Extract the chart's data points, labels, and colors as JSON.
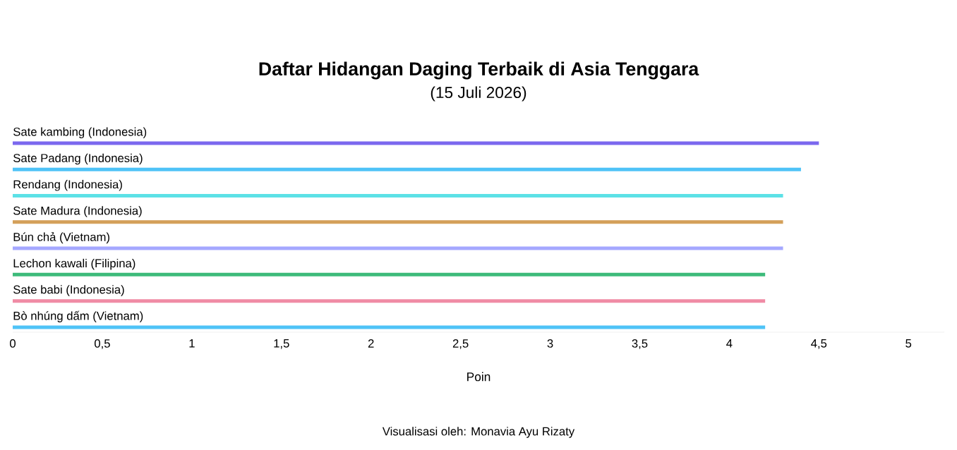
{
  "chart_data": {
    "type": "bar",
    "orientation": "horizontal",
    "title": "Daftar Hidangan Daging Terbaik di Asia Tenggara",
    "subtitle": "(15 Juli 2026)",
    "xlabel": "Poin",
    "categories": [
      "Sate kambing (Indonesia)",
      "Sate Padang (Indonesia)",
      "Rendang (Indonesia)",
      "Sate Madura (Indonesia)",
      "Bún chả (Vietnam)",
      "Lechon kawali (Filipina)",
      "Sate babi (Indonesia)",
      "Bò nhúng dấm (Vietnam)"
    ],
    "values": [
      4.5,
      4.4,
      4.3,
      4.3,
      4.3,
      4.2,
      4.2,
      4.2
    ],
    "colors": [
      "#7b68ee",
      "#4fc3f7",
      "#5ce1e6",
      "#d4a05a",
      "#a5a8ff",
      "#3dbb7a",
      "#f08ba5",
      "#4fc3f7"
    ],
    "xlim": [
      0,
      5.2
    ],
    "xticks": [
      0,
      {
        "value": 0.5,
        "label": "0,5"
      },
      1,
      {
        "value": 1.5,
        "label": "1,5"
      },
      2,
      {
        "value": 2.5,
        "label": "2,5"
      },
      3,
      {
        "value": 3.5,
        "label": "3,5"
      },
      4,
      {
        "value": 4.5,
        "label": "4,5"
      },
      5
    ],
    "grid": false,
    "annotations": [
      "Visualisasi oleh: Monavia Ayu Rizaty"
    ]
  }
}
